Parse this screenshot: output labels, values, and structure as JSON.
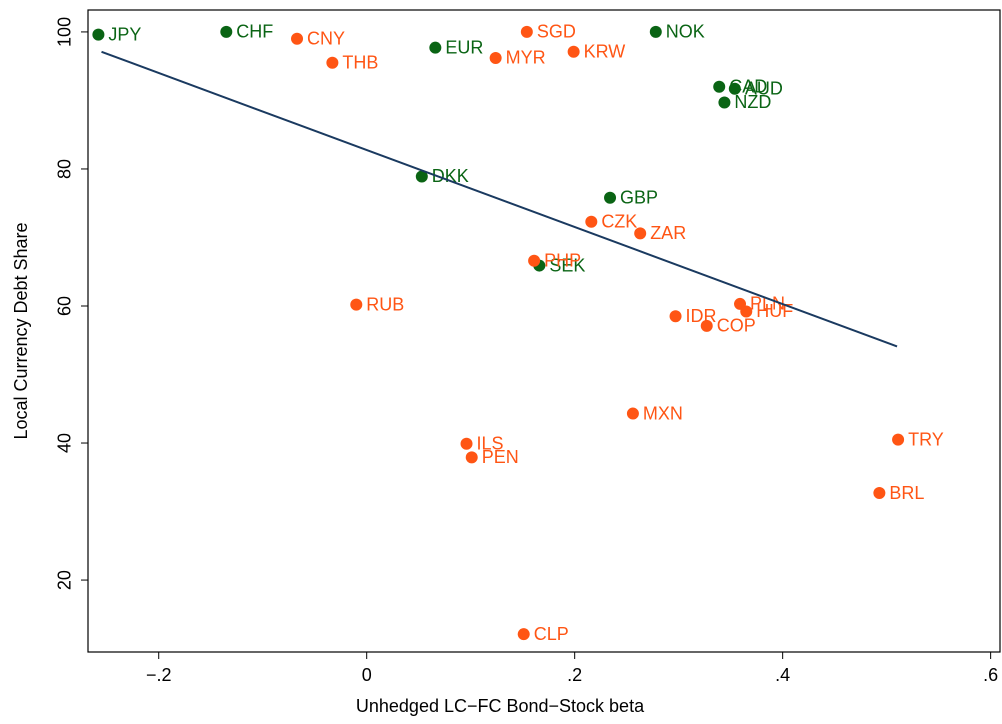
{
  "chart_data": {
    "type": "scatter",
    "x_label": "Unhedged LC−FC Bond−Stock beta",
    "y_label": "Local Currency Debt Share",
    "xlim": [
      -0.268,
      0.609
    ],
    "ylim": [
      9.5,
      103.2
    ],
    "xticks": [
      {
        "value": -0.2,
        "label": "−.2"
      },
      0,
      {
        "value": 0.2,
        "label": ".2"
      },
      {
        "value": 0.4,
        "label": ".4"
      },
      {
        "value": 0.6,
        "label": ".6"
      }
    ],
    "yticks": [
      20,
      40,
      60,
      80,
      100
    ],
    "series": [
      {
        "color": "#0a6414",
        "labels": [
          "JPY",
          "CHF",
          "EUR",
          "NOK",
          "CAD",
          "AUD",
          "NZD",
          "DKK",
          "GBP",
          "SEK"
        ],
        "x": [
          -0.258,
          -0.135,
          0.066,
          0.278,
          0.339,
          0.354,
          0.344,
          0.053,
          0.234,
          0.166
        ],
        "values": [
          99.6,
          100,
          97.7,
          100,
          92.0,
          91.7,
          89.7,
          78.9,
          75.8,
          65.9
        ]
      },
      {
        "color": "#ff5514",
        "labels": [
          "CNY",
          "THB",
          "SGD",
          "MYR",
          "KRW",
          "CZK",
          "ZAR",
          "PHP",
          "RUB",
          "PLN",
          "HUF",
          "IDR",
          "COP",
          "MXN",
          "ILS",
          "PEN",
          "TRY",
          "BRL",
          "CLP"
        ],
        "x": [
          -0.067,
          -0.033,
          0.154,
          0.124,
          0.199,
          0.216,
          0.263,
          0.161,
          -0.01,
          0.359,
          0.365,
          0.297,
          0.327,
          0.256,
          0.096,
          0.101,
          0.511,
          0.493,
          0.151
        ],
        "values": [
          99.0,
          95.5,
          100,
          96.2,
          97.1,
          72.3,
          70.6,
          66.6,
          60.2,
          60.3,
          59.2,
          58.5,
          57.1,
          44.3,
          39.9,
          37.9,
          40.5,
          32.7,
          12.1
        ]
      }
    ],
    "fit_line": {
      "color": "#1a3a60",
      "x": [
        -0.255,
        0.51
      ],
      "values": [
        97.1,
        54.1
      ]
    }
  }
}
